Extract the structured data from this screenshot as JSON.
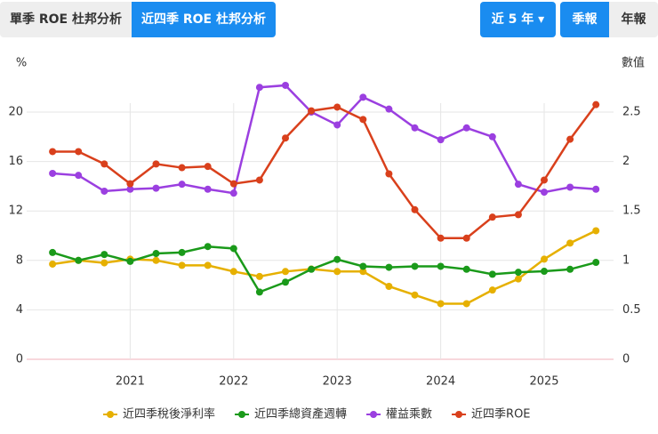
{
  "tabs": [
    "單季 ROE 杜邦分析",
    "近四季 ROE 杜邦分析"
  ],
  "controls": {
    "range": "近 5 年",
    "quarterly": "季報",
    "annual": "年報"
  },
  "chart_data": {
    "type": "line",
    "y_label": "%",
    "y2_label": "數值",
    "x": [
      2020.25,
      2020.5,
      2020.75,
      2021,
      2021.25,
      2021.5,
      2021.75,
      2022,
      2022.25,
      2022.5,
      2022.75,
      2023,
      2023.25,
      2023.5,
      2023.75,
      2024,
      2024.25,
      2024.5,
      2024.75,
      2025,
      2025.25,
      2025.5
    ],
    "xlim": [
      2020,
      2025.67
    ],
    "xticks": [
      2021,
      2022,
      2023,
      2024,
      2025
    ],
    "ylim": [
      0,
      20
    ],
    "yticks": [
      0,
      4,
      8,
      12,
      16,
      20
    ],
    "y2lim": [
      0,
      2.5
    ],
    "y2ticks": [
      0,
      0.5,
      1,
      1.5,
      2,
      2.5
    ],
    "grid": true,
    "series": [
      {
        "name": "近四季稅後淨利率",
        "color": "#e6b000",
        "values": [
          7.7,
          8.0,
          7.8,
          8.1,
          8.0,
          7.6,
          7.6,
          7.1,
          6.7,
          7.1,
          7.3,
          7.1,
          7.1,
          5.9,
          5.2,
          4.5,
          4.5,
          5.6,
          6.5,
          8.1,
          9.4,
          10.4
        ]
      },
      {
        "name": "近四季總資產週轉",
        "color": "#1a9a1a",
        "axis": "y2",
        "values": [
          1.08,
          1.0,
          1.06,
          0.99,
          1.07,
          1.08,
          1.14,
          1.12,
          0.68,
          0.78,
          0.91,
          1.01,
          0.94,
          0.93,
          0.94,
          0.94,
          0.91,
          0.86,
          0.88,
          0.89,
          0.91,
          0.98
        ]
      },
      {
        "name": "權益乘數",
        "color": "#9b3fe0",
        "axis": "y2",
        "values": [
          1.88,
          1.86,
          1.7,
          1.72,
          1.73,
          1.77,
          1.72,
          1.68,
          2.75,
          2.77,
          2.5,
          2.37,
          2.65,
          2.53,
          2.34,
          2.22,
          2.34,
          2.25,
          1.77,
          1.69,
          1.74,
          1.72
        ]
      },
      {
        "name": "近四季ROE",
        "color": "#d9401c",
        "values": [
          16.8,
          16.8,
          15.8,
          14.2,
          15.8,
          15.5,
          15.6,
          14.2,
          14.5,
          17.9,
          20.1,
          20.4,
          19.4,
          15.0,
          12.1,
          9.8,
          9.8,
          11.5,
          11.7,
          14.5,
          17.8,
          20.6
        ]
      }
    ]
  }
}
